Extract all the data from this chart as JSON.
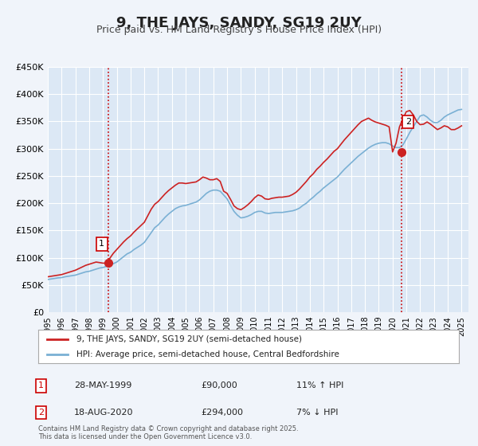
{
  "title": "9, THE JAYS, SANDY, SG19 2UY",
  "subtitle": "Price paid vs. HM Land Registry's House Price Index (HPI)",
  "background_color": "#f0f4fa",
  "plot_bg_color": "#dce8f5",
  "grid_color": "#ffffff",
  "ylim": [
    0,
    450000
  ],
  "yticks": [
    0,
    50000,
    100000,
    150000,
    200000,
    250000,
    300000,
    350000,
    400000,
    450000
  ],
  "ytick_labels": [
    "£0",
    "£50K",
    "£100K",
    "£150K",
    "£200K",
    "£250K",
    "£300K",
    "£350K",
    "£400K",
    "£450K"
  ],
  "xlim_start": 1995.0,
  "xlim_end": 2025.5,
  "xticks": [
    1995,
    1996,
    1997,
    1998,
    1999,
    2000,
    2001,
    2002,
    2003,
    2004,
    2005,
    2006,
    2007,
    2008,
    2009,
    2010,
    2011,
    2012,
    2013,
    2014,
    2015,
    2016,
    2017,
    2018,
    2019,
    2020,
    2021,
    2022,
    2023,
    2024,
    2025
  ],
  "sale1_x": 1999.41,
  "sale1_y": 90000,
  "sale1_label": "1",
  "sale2_x": 2020.63,
  "sale2_y": 294000,
  "sale2_label": "2",
  "vline1_x": 1999.41,
  "vline2_x": 2020.63,
  "vline_color": "#cc0000",
  "vline_style": ":",
  "red_line_color": "#cc2222",
  "blue_line_color": "#7ab0d4",
  "legend_label_red": "9, THE JAYS, SANDY, SG19 2UY (semi-detached house)",
  "legend_label_blue": "HPI: Average price, semi-detached house, Central Bedfordshire",
  "annotation1_date": "28-MAY-1999",
  "annotation1_price": "£90,000",
  "annotation1_hpi": "11% ↑ HPI",
  "annotation2_date": "18-AUG-2020",
  "annotation2_price": "£294,000",
  "annotation2_hpi": "7% ↓ HPI",
  "footer": "Contains HM Land Registry data © Crown copyright and database right 2025.\nThis data is licensed under the Open Government Licence v3.0.",
  "hpi_data_x": [
    1995.0,
    1995.25,
    1995.5,
    1995.75,
    1996.0,
    1996.25,
    1996.5,
    1996.75,
    1997.0,
    1997.25,
    1997.5,
    1997.75,
    1998.0,
    1998.25,
    1998.5,
    1998.75,
    1999.0,
    1999.25,
    1999.5,
    1999.75,
    2000.0,
    2000.25,
    2000.5,
    2000.75,
    2001.0,
    2001.25,
    2001.5,
    2001.75,
    2002.0,
    2002.25,
    2002.5,
    2002.75,
    2003.0,
    2003.25,
    2003.5,
    2003.75,
    2004.0,
    2004.25,
    2004.5,
    2004.75,
    2005.0,
    2005.25,
    2005.5,
    2005.75,
    2006.0,
    2006.25,
    2006.5,
    2006.75,
    2007.0,
    2007.25,
    2007.5,
    2007.75,
    2008.0,
    2008.25,
    2008.5,
    2008.75,
    2009.0,
    2009.25,
    2009.5,
    2009.75,
    2010.0,
    2010.25,
    2010.5,
    2010.75,
    2011.0,
    2011.25,
    2011.5,
    2011.75,
    2012.0,
    2012.25,
    2012.5,
    2012.75,
    2013.0,
    2013.25,
    2013.5,
    2013.75,
    2014.0,
    2014.25,
    2014.5,
    2014.75,
    2015.0,
    2015.25,
    2015.5,
    2015.75,
    2016.0,
    2016.25,
    2016.5,
    2016.75,
    2017.0,
    2017.25,
    2017.5,
    2017.75,
    2018.0,
    2018.25,
    2018.5,
    2018.75,
    2019.0,
    2019.25,
    2019.5,
    2019.75,
    2020.0,
    2020.25,
    2020.5,
    2020.75,
    2021.0,
    2021.25,
    2021.5,
    2021.75,
    2022.0,
    2022.25,
    2022.5,
    2022.75,
    2023.0,
    2023.25,
    2023.5,
    2023.75,
    2024.0,
    2024.25,
    2024.5,
    2024.75,
    2025.0
  ],
  "hpi_data_y": [
    60000,
    61000,
    62000,
    63000,
    63500,
    65000,
    66000,
    67000,
    68000,
    70000,
    72000,
    74000,
    75000,
    77000,
    79000,
    81000,
    82000,
    84000,
    86000,
    89000,
    92000,
    97000,
    102000,
    107000,
    110000,
    115000,
    119000,
    123000,
    128000,
    137000,
    146000,
    155000,
    160000,
    167000,
    174000,
    180000,
    185000,
    190000,
    193000,
    195000,
    196000,
    198000,
    200000,
    202000,
    206000,
    212000,
    218000,
    222000,
    224000,
    224000,
    222000,
    215000,
    208000,
    196000,
    185000,
    178000,
    173000,
    174000,
    176000,
    179000,
    183000,
    185000,
    185000,
    182000,
    181000,
    182000,
    183000,
    183000,
    183000,
    184000,
    185000,
    186000,
    188000,
    191000,
    196000,
    200000,
    206000,
    211000,
    217000,
    222000,
    228000,
    233000,
    238000,
    243000,
    248000,
    255000,
    262000,
    268000,
    274000,
    280000,
    286000,
    291000,
    296000,
    301000,
    305000,
    308000,
    310000,
    311000,
    311000,
    309000,
    305000,
    302000,
    302000,
    307000,
    318000,
    330000,
    340000,
    350000,
    360000,
    362000,
    358000,
    352000,
    348000,
    348000,
    352000,
    358000,
    362000,
    365000,
    368000,
    371000,
    372000
  ],
  "red_data_x": [
    1995.0,
    1995.25,
    1995.5,
    1995.75,
    1996.0,
    1996.25,
    1996.5,
    1996.75,
    1997.0,
    1997.25,
    1997.5,
    1997.75,
    1998.0,
    1998.25,
    1998.5,
    1998.75,
    1999.0,
    1999.25,
    1999.5,
    1999.75,
    2000.0,
    2000.25,
    2000.5,
    2000.75,
    2001.0,
    2001.25,
    2001.5,
    2001.75,
    2002.0,
    2002.25,
    2002.5,
    2002.75,
    2003.0,
    2003.25,
    2003.5,
    2003.75,
    2004.0,
    2004.25,
    2004.5,
    2004.75,
    2005.0,
    2005.25,
    2005.5,
    2005.75,
    2006.0,
    2006.25,
    2006.5,
    2006.75,
    2007.0,
    2007.25,
    2007.5,
    2007.75,
    2008.0,
    2008.25,
    2008.5,
    2008.75,
    2009.0,
    2009.25,
    2009.5,
    2009.75,
    2010.0,
    2010.25,
    2010.5,
    2010.75,
    2011.0,
    2011.25,
    2011.5,
    2011.75,
    2012.0,
    2012.25,
    2012.5,
    2012.75,
    2013.0,
    2013.25,
    2013.5,
    2013.75,
    2014.0,
    2014.25,
    2014.5,
    2014.75,
    2015.0,
    2015.25,
    2015.5,
    2015.75,
    2016.0,
    2016.25,
    2016.5,
    2016.75,
    2017.0,
    2017.25,
    2017.5,
    2017.75,
    2018.0,
    2018.25,
    2018.5,
    2018.75,
    2019.0,
    2019.25,
    2019.5,
    2019.75,
    2020.0,
    2020.25,
    2020.5,
    2020.75,
    2021.0,
    2021.25,
    2021.5,
    2021.75,
    2022.0,
    2022.25,
    2022.5,
    2022.75,
    2023.0,
    2023.25,
    2023.5,
    2023.75,
    2024.0,
    2024.25,
    2024.5,
    2024.75,
    2025.0
  ],
  "red_data_y": [
    65000,
    66000,
    67000,
    68000,
    69000,
    71000,
    73000,
    75000,
    77000,
    80000,
    83000,
    86000,
    88000,
    90000,
    92000,
    91000,
    90000,
    90000,
    99000,
    108000,
    115000,
    122000,
    129000,
    135000,
    140000,
    147000,
    153000,
    159000,
    165000,
    177000,
    189000,
    198000,
    203000,
    210000,
    217000,
    223000,
    228000,
    233000,
    237000,
    237000,
    236000,
    237000,
    238000,
    239000,
    243000,
    248000,
    246000,
    243000,
    243000,
    245000,
    240000,
    222000,
    218000,
    207000,
    195000,
    190000,
    188000,
    192000,
    197000,
    203000,
    210000,
    215000,
    213000,
    208000,
    207000,
    209000,
    210000,
    211000,
    211000,
    212000,
    213000,
    216000,
    220000,
    226000,
    233000,
    240000,
    248000,
    254000,
    262000,
    268000,
    275000,
    281000,
    288000,
    295000,
    300000,
    308000,
    316000,
    323000,
    330000,
    337000,
    344000,
    350000,
    353000,
    356000,
    352000,
    349000,
    347000,
    345000,
    343000,
    340000,
    294000,
    310000,
    340000,
    355000,
    368000,
    370000,
    362000,
    350000,
    344000,
    345000,
    349000,
    345000,
    340000,
    335000,
    338000,
    342000,
    340000,
    335000,
    335000,
    338000,
    342000
  ]
}
